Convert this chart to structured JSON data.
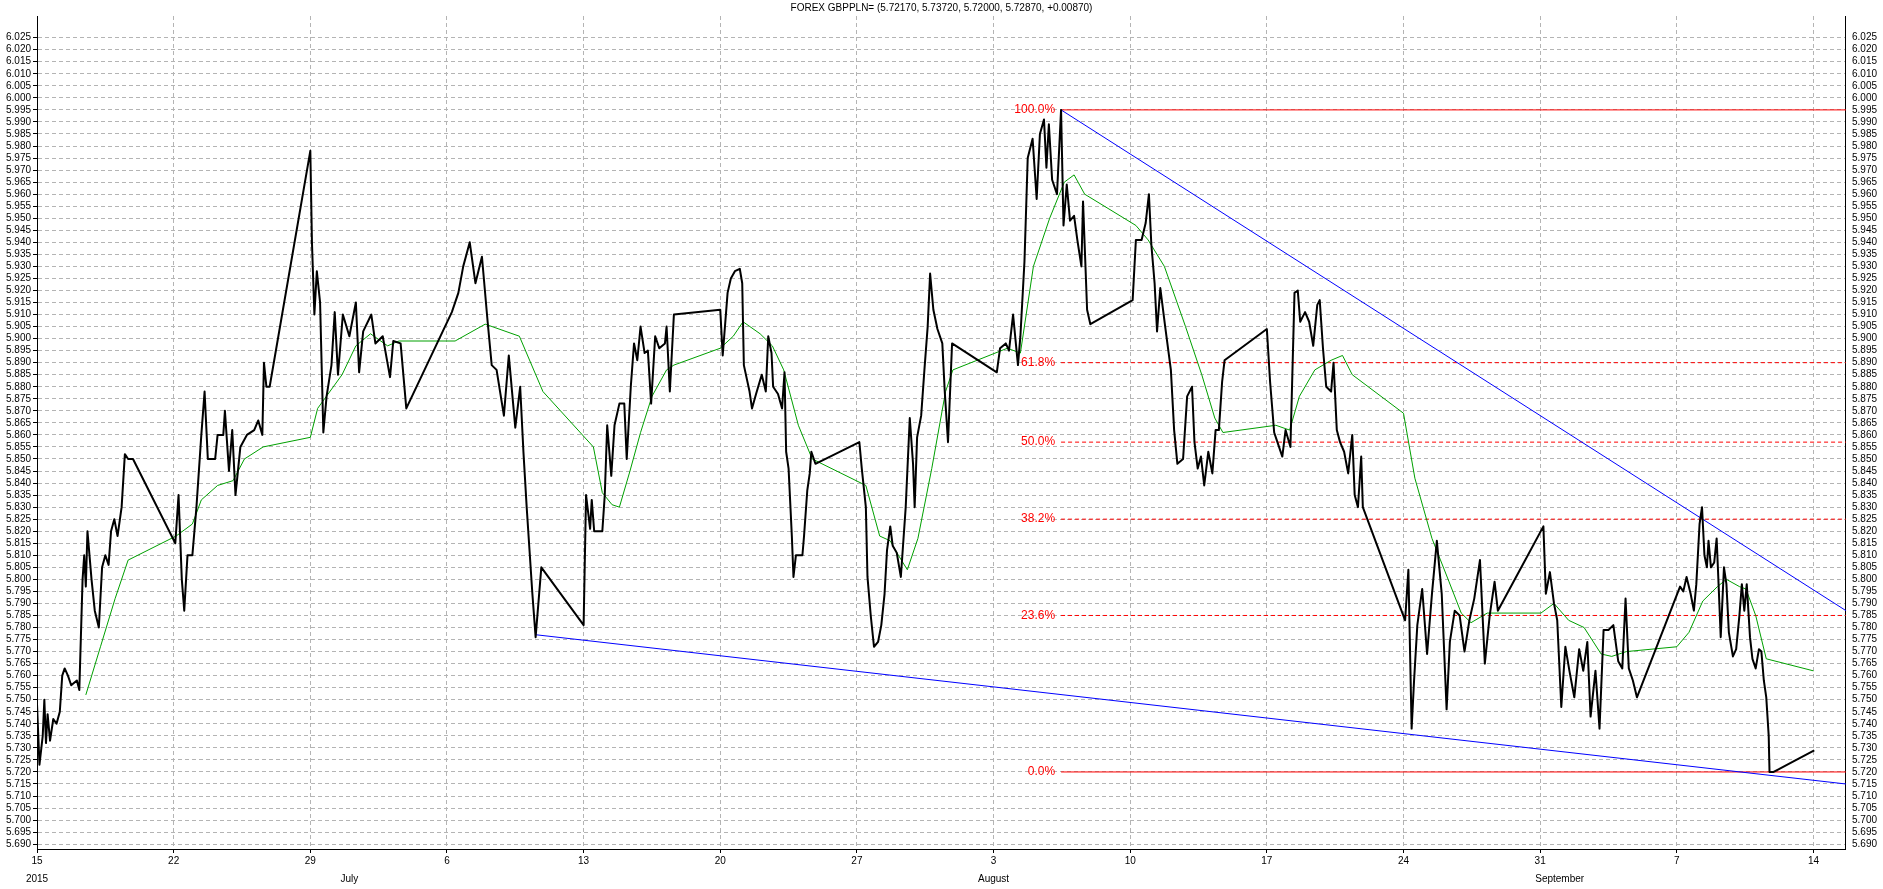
{
  "chart_data": {
    "type": "line",
    "title": "FOREX GBPPLN= (5.72170, 5.73720, 5.72000, 5.72870, +0.00870)",
    "xlim": [
      "2015-06-15T00:00",
      "2015-09-15T16:00"
    ],
    "xticks": [
      {
        "value": "2015-06-15",
        "label": "15"
      },
      {
        "value": "2015-06-22",
        "label": "22"
      },
      {
        "value": "2015-06-29",
        "label": "29"
      },
      {
        "value": "2015-07-06",
        "label": "6"
      },
      {
        "value": "2015-07-13",
        "label": "13"
      },
      {
        "value": "2015-07-20",
        "label": "20"
      },
      {
        "value": "2015-07-27",
        "label": "27"
      },
      {
        "value": "2015-08-03",
        "label": "3"
      },
      {
        "value": "2015-08-10",
        "label": "10"
      },
      {
        "value": "2015-08-17",
        "label": "17"
      },
      {
        "value": "2015-08-24",
        "label": "24"
      },
      {
        "value": "2015-08-31",
        "label": "31"
      },
      {
        "value": "2015-09-07",
        "label": "7"
      },
      {
        "value": "2015-09-14",
        "label": "14"
      }
    ],
    "ylim": [
      5.688,
      6.034
    ],
    "yticks": [
      {
        "value": 5.69,
        "label": "5.690"
      },
      {
        "value": 5.695,
        "label": "5.695"
      },
      {
        "value": 5.7,
        "label": "5.700"
      },
      {
        "value": 5.705,
        "label": "5.705"
      },
      {
        "value": 5.71,
        "label": "5.710"
      },
      {
        "value": 5.715,
        "label": "5.715"
      },
      {
        "value": 5.72,
        "label": "5.720"
      },
      {
        "value": 5.725,
        "label": "5.725"
      },
      {
        "value": 5.73,
        "label": "5.730"
      },
      {
        "value": 5.735,
        "label": "5.735"
      },
      {
        "value": 5.74,
        "label": "5.740"
      },
      {
        "value": 5.745,
        "label": "5.745"
      },
      {
        "value": 5.75,
        "label": "5.750"
      },
      {
        "value": 5.755,
        "label": "5.755"
      },
      {
        "value": 5.76,
        "label": "5.760"
      },
      {
        "value": 5.765,
        "label": "5.765"
      },
      {
        "value": 5.77,
        "label": "5.770"
      },
      {
        "value": 5.775,
        "label": "5.775"
      },
      {
        "value": 5.78,
        "label": "5.780"
      },
      {
        "value": 5.785,
        "label": "5.785"
      },
      {
        "value": 5.79,
        "label": "5.790"
      },
      {
        "value": 5.795,
        "label": "5.795"
      },
      {
        "value": 5.8,
        "label": "5.800"
      },
      {
        "value": 5.805,
        "label": "5.805"
      },
      {
        "value": 5.81,
        "label": "5.810"
      },
      {
        "value": 5.815,
        "label": "5.815"
      },
      {
        "value": 5.82,
        "label": "5.820"
      },
      {
        "value": 5.825,
        "label": "5.825"
      },
      {
        "value": 5.83,
        "label": "5.830"
      },
      {
        "value": 5.835,
        "label": "5.835"
      },
      {
        "value": 5.84,
        "label": "5.840"
      },
      {
        "value": 5.845,
        "label": "5.845"
      },
      {
        "value": 5.85,
        "label": "5.850"
      },
      {
        "value": 5.855,
        "label": "5.855"
      },
      {
        "value": 5.86,
        "label": "5.860"
      },
      {
        "value": 5.865,
        "label": "5.865"
      },
      {
        "value": 5.87,
        "label": "5.870"
      },
      {
        "value": 5.875,
        "label": "5.875"
      },
      {
        "value": 5.88,
        "label": "5.880"
      },
      {
        "value": 5.885,
        "label": "5.885"
      },
      {
        "value": 5.89,
        "label": "5.890"
      },
      {
        "value": 5.895,
        "label": "5.895"
      },
      {
        "value": 5.9,
        "label": "5.900"
      },
      {
        "value": 5.905,
        "label": "5.905"
      },
      {
        "value": 5.91,
        "label": "5.910"
      },
      {
        "value": 5.915,
        "label": "5.915"
      },
      {
        "value": 5.92,
        "label": "5.920"
      },
      {
        "value": 5.925,
        "label": "5.925"
      },
      {
        "value": 5.93,
        "label": "5.930"
      },
      {
        "value": 5.935,
        "label": "5.935"
      },
      {
        "value": 5.94,
        "label": "5.940"
      },
      {
        "value": 5.945,
        "label": "5.945"
      },
      {
        "value": 5.95,
        "label": "5.950"
      },
      {
        "value": 5.955,
        "label": "5.955"
      },
      {
        "value": 5.96,
        "label": "5.960"
      },
      {
        "value": 5.965,
        "label": "5.965"
      },
      {
        "value": 5.97,
        "label": "5.970"
      },
      {
        "value": 5.975,
        "label": "5.975"
      },
      {
        "value": 5.98,
        "label": "5.980"
      },
      {
        "value": 5.985,
        "label": "5.985"
      },
      {
        "value": 5.99,
        "label": "5.990"
      },
      {
        "value": 5.995,
        "label": "5.995"
      },
      {
        "value": 6.0,
        "label": "6.000"
      },
      {
        "value": 6.005,
        "label": "6.005"
      },
      {
        "value": 6.01,
        "label": "6.010"
      },
      {
        "value": 6.015,
        "label": "6.015"
      },
      {
        "value": 6.02,
        "label": "6.020"
      },
      {
        "value": 6.025,
        "label": "6.025"
      }
    ],
    "y2lim": [
      5.688,
      6.034
    ],
    "y2ticks": [
      {
        "value": 5.69,
        "label": "5.690"
      },
      {
        "value": 5.695,
        "label": "5.695"
      },
      {
        "value": 5.7,
        "label": "5.700"
      },
      {
        "value": 5.705,
        "label": "5.705"
      },
      {
        "value": 5.71,
        "label": "5.710"
      },
      {
        "value": 5.715,
        "label": "5.715"
      },
      {
        "value": 5.72,
        "label": "5.720"
      },
      {
        "value": 5.725,
        "label": "5.725"
      },
      {
        "value": 5.73,
        "label": "5.730"
      },
      {
        "value": 5.735,
        "label": "5.735"
      },
      {
        "value": 5.74,
        "label": "5.740"
      },
      {
        "value": 5.745,
        "label": "5.745"
      },
      {
        "value": 5.75,
        "label": "5.750"
      },
      {
        "value": 5.755,
        "label": "5.755"
      },
      {
        "value": 5.76,
        "label": "5.760"
      },
      {
        "value": 5.765,
        "label": "5.765"
      },
      {
        "value": 5.77,
        "label": "5.770"
      },
      {
        "value": 5.775,
        "label": "5.775"
      },
      {
        "value": 5.78,
        "label": "5.780"
      },
      {
        "value": 5.785,
        "label": "5.785"
      },
      {
        "value": 5.79,
        "label": "5.790"
      },
      {
        "value": 5.795,
        "label": "5.795"
      },
      {
        "value": 5.8,
        "label": "5.800"
      },
      {
        "value": 5.805,
        "label": "5.805"
      },
      {
        "value": 5.81,
        "label": "5.810"
      },
      {
        "value": 5.815,
        "label": "5.815"
      },
      {
        "value": 5.82,
        "label": "5.820"
      },
      {
        "value": 5.825,
        "label": "5.825"
      },
      {
        "value": 5.83,
        "label": "5.830"
      },
      {
        "value": 5.835,
        "label": "5.835"
      },
      {
        "value": 5.84,
        "label": "5.840"
      },
      {
        "value": 5.845,
        "label": "5.845"
      },
      {
        "value": 5.85,
        "label": "5.850"
      },
      {
        "value": 5.855,
        "label": "5.855"
      },
      {
        "value": 5.86,
        "label": "5.860"
      },
      {
        "value": 5.865,
        "label": "5.865"
      },
      {
        "value": 5.87,
        "label": "5.870"
      },
      {
        "value": 5.875,
        "label": "5.875"
      },
      {
        "value": 5.88,
        "label": "5.880"
      },
      {
        "value": 5.885,
        "label": "5.885"
      },
      {
        "value": 5.89,
        "label": "5.890"
      },
      {
        "value": 5.895,
        "label": "5.895"
      },
      {
        "value": 5.9,
        "label": "5.900"
      },
      {
        "value": 5.905,
        "label": "5.905"
      },
      {
        "value": 5.91,
        "label": "5.910"
      },
      {
        "value": 5.915,
        "label": "5.915"
      },
      {
        "value": 5.92,
        "label": "5.920"
      },
      {
        "value": 5.925,
        "label": "5.925"
      },
      {
        "value": 5.93,
        "label": "5.930"
      },
      {
        "value": 5.935,
        "label": "5.935"
      },
      {
        "value": 5.94,
        "label": "5.940"
      },
      {
        "value": 5.945,
        "label": "5.945"
      },
      {
        "value": 5.95,
        "label": "5.950"
      },
      {
        "value": 5.955,
        "label": "5.955"
      },
      {
        "value": 5.96,
        "label": "5.960"
      },
      {
        "value": 5.965,
        "label": "5.965"
      },
      {
        "value": 5.97,
        "label": "5.970"
      },
      {
        "value": 5.975,
        "label": "5.975"
      },
      {
        "value": 5.98,
        "label": "5.980"
      },
      {
        "value": 5.985,
        "label": "5.985"
      },
      {
        "value": 5.99,
        "label": "5.990"
      },
      {
        "value": 5.995,
        "label": "5.995"
      },
      {
        "value": 6.0,
        "label": "6.000"
      },
      {
        "value": 6.005,
        "label": "6.005"
      },
      {
        "value": 6.01,
        "label": "6.010"
      },
      {
        "value": 6.015,
        "label": "6.015"
      },
      {
        "value": 6.02,
        "label": "6.020"
      },
      {
        "value": 6.025,
        "label": "6.025"
      }
    ],
    "grid": true,
    "series": [
      {
        "color": "#000000",
        "x": [
          "2015-06-15T00:00",
          "2015-06-15T03:00",
          "2015-06-15T07:00",
          "2015-06-15T09:00",
          "2015-06-15T11:00",
          "2015-06-15T13:00",
          "2015-06-15T16:00",
          "2015-06-15T20:00",
          "2015-06-16T00:00",
          "2015-06-16T04:00",
          "2015-06-16T07:00",
          "2015-06-16T10:00",
          "2015-06-16T14:00",
          "2015-06-16T18:00",
          "2015-06-17T01:00",
          "2015-06-17T04:00",
          "2015-06-17T08:00",
          "2015-06-17T10:00",
          "2015-06-17T12:00",
          "2015-06-17T14:00",
          "2015-06-17T19:00",
          "2015-06-17T23:00",
          "2015-06-18T04:00",
          "2015-06-18T08:00",
          "2015-06-18T12:00",
          "2015-06-18T16:00",
          "2015-06-18T19:00",
          "2015-06-18T23:00",
          "2015-06-19T03:00",
          "2015-06-19T08:00",
          "2015-06-19T12:00",
          "2015-06-19T16:00",
          "2015-06-19T22:00",
          "2015-06-22T02:00",
          "2015-06-22T06:00",
          "2015-06-22T10:00",
          "2015-06-22T13:00",
          "2015-06-22T17:00",
          "2015-06-22T23:00",
          "2015-06-23T04:00",
          "2015-06-23T10:00",
          "2015-06-23T14:00",
          "2015-06-23T18:00",
          "2015-06-24T03:00",
          "2015-06-24T06:00",
          "2015-06-24T13:00",
          "2015-06-24T15:00",
          "2015-06-24T20:00",
          "2015-06-25T00:00",
          "2015-06-25T04:00",
          "2015-06-25T10:00",
          "2015-06-25T18:00",
          "2015-06-26T03:00",
          "2015-06-26T08:00",
          "2015-06-26T13:00",
          "2015-06-26T15:00",
          "2015-06-26T18:00",
          "2015-06-26T22:00",
          "2015-06-29T00:00",
          "2015-06-29T02:00",
          "2015-06-29T05:00",
          "2015-06-29T08:00",
          "2015-06-29T12:00",
          "2015-06-29T16:00",
          "2015-06-29T20:00",
          "2015-06-30T02:00",
          "2015-06-30T06:00",
          "2015-06-30T10:00",
          "2015-06-30T16:00",
          "2015-07-01T00:00",
          "2015-07-01T08:00",
          "2015-07-01T12:00",
          "2015-07-01T17:00",
          "2015-07-02T03:00",
          "2015-07-02T08:00",
          "2015-07-02T17:00",
          "2015-07-03T02:00",
          "2015-07-03T06:00",
          "2015-07-03T15:00",
          "2015-07-03T22:00",
          "2015-07-06T06:00",
          "2015-07-06T14:00",
          "2015-07-06T20:00",
          "2015-07-07T04:00",
          "2015-07-07T11:00",
          "2015-07-07T19:00",
          "2015-07-08T02:00",
          "2015-07-08T07:00",
          "2015-07-08T13:00",
          "2015-07-08T22:00",
          "2015-07-09T04:00",
          "2015-07-09T12:00",
          "2015-07-09T18:00",
          "2015-07-09T22:00",
          "2015-07-10T02:00",
          "2015-07-10T09:00",
          "2015-07-10T13:00",
          "2015-07-10T20:00",
          "2015-07-13T00:00",
          "2015-07-13T03:00",
          "2015-07-13T08:00",
          "2015-07-13T10:00",
          "2015-07-13T13:00",
          "2015-07-13T23:00",
          "2015-07-14T02:00",
          "2015-07-14T05:00",
          "2015-07-14T10:00",
          "2015-07-14T14:00",
          "2015-07-14T20:00",
          "2015-07-15T02:00",
          "2015-07-15T05:00",
          "2015-07-15T10:00",
          "2015-07-15T14:00",
          "2015-07-15T18:00",
          "2015-07-15T22:00",
          "2015-07-16T03:00",
          "2015-07-16T07:00",
          "2015-07-16T11:00",
          "2015-07-16T16:00",
          "2015-07-16T21:00",
          "2015-07-17T04:00",
          "2015-07-17T06:00",
          "2015-07-17T10:00",
          "2015-07-17T15:00",
          "2015-07-20T00:00",
          "2015-07-20T03:00",
          "2015-07-20T09:00",
          "2015-07-20T13:00",
          "2015-07-20T18:00",
          "2015-07-21T00:00",
          "2015-07-21T03:00",
          "2015-07-21T05:00",
          "2015-07-21T12:00",
          "2015-07-21T15:00",
          "2015-07-21T20:00",
          "2015-07-22T03:00",
          "2015-07-22T08:00",
          "2015-07-22T11:00",
          "2015-07-22T15:00",
          "2015-07-22T17:00",
          "2015-07-22T23:00",
          "2015-07-23T04:00",
          "2015-07-23T07:00",
          "2015-07-23T09:00",
          "2015-07-23T12:00",
          "2015-07-23T16:00",
          "2015-07-23T18:00",
          "2015-07-23T21:00",
          "2015-07-24T05:00",
          "2015-07-24T07:00",
          "2015-07-24T11:00",
          "2015-07-24T14:00",
          "2015-07-24T16:00",
          "2015-07-24T21:00",
          "2015-07-27T03:00",
          "2015-07-27T06:00",
          "2015-07-27T11:00",
          "2015-07-27T13:00",
          "2015-07-27T17:00",
          "2015-07-27T21:00",
          "2015-07-28T02:00",
          "2015-07-28T06:00",
          "2015-07-28T10:00",
          "2015-07-28T13:00",
          "2015-07-28T17:00",
          "2015-07-28T20:00",
          "2015-07-29T01:00",
          "2015-07-29T06:00",
          "2015-07-29T12:00",
          "2015-07-29T17:00",
          "2015-07-29T21:00",
          "2015-07-29T23:00",
          "2015-07-30T02:00",
          "2015-07-30T07:00",
          "2015-07-30T11:00",
          "2015-07-30T15:00",
          "2015-07-30T18:00",
          "2015-07-30T22:00",
          "2015-07-31T03:00",
          "2015-07-31T09:00",
          "2015-07-31T12:00",
          "2015-07-31T16:00",
          "2015-07-31T21:00",
          "2015-08-03T04:00",
          "2015-08-03T08:00",
          "2015-08-03T15:00",
          "2015-08-03T19:00",
          "2015-08-04T00:00",
          "2015-08-04T06:00",
          "2015-08-04T09:00",
          "2015-08-04T14:00",
          "2015-08-04T18:00",
          "2015-08-05T00:00",
          "2015-08-05T05:00",
          "2015-08-05T09:00",
          "2015-08-05T14:00",
          "2015-08-05T17:00",
          "2015-08-05T20:00",
          "2015-08-06T00:00",
          "2015-08-06T06:00",
          "2015-08-06T11:00",
          "2015-08-06T14:00",
          "2015-08-06T18:00",
          "2015-08-06T22:00",
          "2015-08-07T03:00",
          "2015-08-07T07:00",
          "2015-08-07T12:00",
          "2015-08-07T14:00",
          "2015-08-07T19:00",
          "2015-08-07T23:00",
          "2015-08-10T03:00",
          "2015-08-10T07:00",
          "2015-08-10T14:00",
          "2015-08-10T19:00",
          "2015-08-10T23:00",
          "2015-08-11T02:00",
          "2015-08-11T06:00",
          "2015-08-11T09:00",
          "2015-08-11T13:00",
          "2015-08-11T19:00",
          "2015-08-12T02:00",
          "2015-08-12T06:00",
          "2015-08-12T10:00",
          "2015-08-12T17:00",
          "2015-08-12T22:00",
          "2015-08-13T04:00",
          "2015-08-13T07:00",
          "2015-08-13T11:00",
          "2015-08-13T15:00",
          "2015-08-13T19:00",
          "2015-08-14T00:00",
          "2015-08-14T05:00",
          "2015-08-14T09:00",
          "2015-08-14T13:00",
          "2015-08-14T17:00",
          "2015-08-14T20:00",
          "2015-08-17T00:00",
          "2015-08-17T04:00",
          "2015-08-17T09:00",
          "2015-08-17T13:00",
          "2015-08-17T19:00",
          "2015-08-17T23:00",
          "2015-08-18T05:00",
          "2015-08-18T10:00",
          "2015-08-18T14:00",
          "2015-08-18T17:00",
          "2015-08-18T23:00",
          "2015-08-19T04:00",
          "2015-08-19T09:00",
          "2015-08-19T14:00",
          "2015-08-19T17:00",
          "2015-08-19T21:00",
          "2015-08-20T01:00",
          "2015-08-20T07:00",
          "2015-08-20T10:00",
          "2015-08-20T14:00",
          "2015-08-20T18:00",
          "2015-08-20T23:00",
          "2015-08-21T04:00",
          "2015-08-21T09:00",
          "2015-08-21T12:00",
          "2015-08-21T16:00",
          "2015-08-21T20:00",
          "2015-08-21T22:00",
          "2015-08-24T02:00",
          "2015-08-24T06:00",
          "2015-08-24T10:00",
          "2015-08-24T13:00",
          "2015-08-24T17:00",
          "2015-08-24T23:00",
          "2015-08-25T05:00",
          "2015-08-25T11:00",
          "2015-08-25T17:00",
          "2015-08-25T23:00",
          "2015-08-26T05:00",
          "2015-08-26T09:00",
          "2015-08-26T15:00",
          "2015-08-26T21:00",
          "2015-08-27T03:00",
          "2015-08-27T09:00",
          "2015-08-27T15:00",
          "2015-08-27T22:00",
          "2015-08-28T04:00",
          "2015-08-28T10:00",
          "2015-08-28T16:00",
          "2015-08-28T20:00",
          "2015-08-31T04:00",
          "2015-08-31T07:00",
          "2015-08-31T12:00",
          "2015-08-31T17:00",
          "2015-08-31T21:00",
          "2015-09-01T02:00",
          "2015-09-01T07:00",
          "2015-09-01T12:00",
          "2015-09-01T18:00",
          "2015-09-02T00:00",
          "2015-09-02T05:00",
          "2015-09-02T10:00",
          "2015-09-02T14:00",
          "2015-09-02T20:00",
          "2015-09-03T01:00",
          "2015-09-03T06:00",
          "2015-09-03T12:00",
          "2015-09-03T18:00",
          "2015-09-04T00:00",
          "2015-09-04T05:00",
          "2015-09-04T09:00",
          "2015-09-04T13:00",
          "2015-09-04T18:00",
          "2015-09-04T23:00",
          "2015-09-07T04:00",
          "2015-09-07T08:00",
          "2015-09-07T12:00",
          "2015-09-07T17:00",
          "2015-09-07T21:00",
          "2015-09-08T00:00",
          "2015-09-08T04:00",
          "2015-09-08T07:00",
          "2015-09-08T10:00",
          "2015-09-08T13:00",
          "2015-09-08T15:00",
          "2015-09-08T18:00",
          "2015-09-08T22:00",
          "2015-09-09T01:00",
          "2015-09-09T03:00",
          "2015-09-09T06:00",
          "2015-09-09T10:00",
          "2015-09-09T13:00",
          "2015-09-09T16:00",
          "2015-09-09T21:00",
          "2015-09-10T01:00",
          "2015-09-10T05:00",
          "2015-09-10T08:00",
          "2015-09-10T11:00",
          "2015-09-10T14:00",
          "2015-09-10T18:00",
          "2015-09-10T21:00",
          "2015-09-11T01:00",
          "2015-09-11T05:00",
          "2015-09-11T08:00",
          "2015-09-11T11:00",
          "2015-09-11T14:00",
          "2015-09-11T17:00",
          "2015-09-11T18:00",
          "2015-09-11T23:00",
          "2015-09-14T01:00"
        ],
        "values": [
          5.748,
          5.723,
          5.735,
          5.75,
          5.732,
          5.744,
          5.733,
          5.742,
          5.74,
          5.745,
          5.76,
          5.763,
          5.76,
          5.756,
          5.758,
          5.754,
          5.8,
          5.81,
          5.797,
          5.82,
          5.8,
          5.787,
          5.78,
          5.805,
          5.81,
          5.806,
          5.82,
          5.825,
          5.818,
          5.83,
          5.852,
          5.85,
          5.85,
          5.815,
          5.835,
          5.8,
          5.787,
          5.81,
          5.81,
          5.83,
          5.86,
          5.878,
          5.85,
          5.85,
          5.86,
          5.86,
          5.87,
          5.845,
          5.862,
          5.835,
          5.855,
          5.86,
          5.862,
          5.866,
          5.86,
          5.89,
          5.88,
          5.88,
          5.978,
          5.94,
          5.91,
          5.928,
          5.915,
          5.861,
          5.876,
          5.889,
          5.911,
          5.885,
          5.91,
          5.901,
          5.915,
          5.886,
          5.903,
          5.91,
          5.898,
          5.901,
          5.884,
          5.899,
          5.898,
          5.871,
          5.911,
          5.919,
          5.93,
          5.94,
          5.923,
          5.934,
          5.907,
          5.889,
          5.887,
          5.868,
          5.893,
          5.863,
          5.88,
          5.853,
          5.83,
          5.794,
          5.776,
          5.805,
          5.781,
          5.835,
          5.821,
          5.833,
          5.82,
          5.82,
          5.835,
          5.864,
          5.843,
          5.864,
          5.873,
          5.873,
          5.85,
          5.88,
          5.898,
          5.891,
          5.905,
          5.894,
          5.895,
          5.873,
          5.901,
          5.896,
          5.898,
          5.905,
          5.878,
          5.91,
          5.912,
          5.893,
          5.919,
          5.925,
          5.928,
          5.929,
          5.923,
          5.889,
          5.878,
          5.871,
          5.877,
          5.885,
          5.878,
          5.901,
          5.894,
          5.88,
          5.877,
          5.871,
          5.886,
          5.853,
          5.846,
          5.818,
          5.801,
          5.81,
          5.81,
          5.818,
          5.837,
          5.844,
          5.853,
          5.848,
          5.857,
          5.846,
          5.83,
          5.801,
          5.785,
          5.772,
          5.774,
          5.781,
          5.794,
          5.812,
          5.822,
          5.814,
          5.811,
          5.801,
          5.83,
          5.867,
          5.848,
          5.83,
          5.859,
          5.868,
          5.887,
          5.905,
          5.927,
          5.912,
          5.904,
          5.898,
          5.878,
          5.857,
          5.898,
          5.886,
          5.896,
          5.898,
          5.895,
          5.91,
          5.889,
          5.901,
          5.932,
          5.975,
          5.983,
          5.958,
          5.985,
          5.991,
          5.971,
          5.989,
          5.966,
          5.96,
          5.995,
          5.947,
          5.964,
          5.949,
          5.951,
          5.941,
          5.93,
          5.957,
          5.912,
          5.906,
          5.916,
          5.941,
          5.941,
          5.948,
          5.96,
          5.939,
          5.923,
          5.903,
          5.921,
          5.905,
          5.887,
          5.862,
          5.848,
          5.85,
          5.876,
          5.88,
          5.857,
          5.846,
          5.851,
          5.839,
          5.853,
          5.844,
          5.862,
          5.862,
          5.882,
          5.891,
          5.904,
          5.882,
          5.861,
          5.857,
          5.851,
          5.862,
          5.855,
          5.919,
          5.92,
          5.907,
          5.911,
          5.907,
          5.897,
          5.914,
          5.916,
          5.896,
          5.88,
          5.878,
          5.89,
          5.862,
          5.857,
          5.853,
          5.844,
          5.86,
          5.835,
          5.83,
          5.851,
          5.83,
          5.783,
          5.804,
          5.738,
          5.758,
          5.781,
          5.796,
          5.769,
          5.794,
          5.816,
          5.794,
          5.746,
          5.774,
          5.787,
          5.785,
          5.77,
          5.783,
          5.792,
          5.808,
          5.765,
          5.785,
          5.799,
          5.787,
          5.822,
          5.794,
          5.803,
          5.79,
          5.783,
          5.747,
          5.772,
          5.762,
          5.751,
          5.771,
          5.762,
          5.774,
          5.743,
          5.762,
          5.738,
          5.779,
          5.779,
          5.781,
          5.766,
          5.763,
          5.792,
          5.763,
          5.758,
          5.751,
          5.797,
          5.795,
          5.801,
          5.794,
          5.787,
          5.798,
          5.823,
          5.83,
          5.81,
          5.805,
          5.816,
          5.805,
          5.807,
          5.817,
          5.801,
          5.776,
          5.805,
          5.798,
          5.778,
          5.768,
          5.771,
          5.785,
          5.798,
          5.787,
          5.798,
          5.776,
          5.767,
          5.763,
          5.771,
          5.77,
          5.758,
          5.751,
          5.735,
          5.72,
          5.72,
          5.729
        ]
      },
      {
        "color": "#00a000",
        "x": [
          "2015-06-17T12:00",
          "2015-06-18T06:00",
          "2015-06-19T00:00",
          "2015-06-19T16:00",
          "2015-06-22T03:00",
          "2015-06-22T23:00",
          "2015-06-23T10:00",
          "2015-06-24T06:00",
          "2015-06-25T01:00",
          "2015-06-25T15:00",
          "2015-06-26T14:00",
          "2015-06-29T00:00",
          "2015-06-29T09:00",
          "2015-06-30T15:00",
          "2015-07-01T08:00",
          "2015-07-02T02:00",
          "2015-07-02T23:00",
          "2015-07-03T13:00",
          "2015-07-06T10:00",
          "2015-07-07T23:00",
          "2015-07-09T17:00",
          "2015-07-10T22:00",
          "2015-07-13T12:00",
          "2015-07-13T23:00",
          "2015-07-14T11:00",
          "2015-07-14T20:00",
          "2015-07-15T09:00",
          "2015-07-15T22:00",
          "2015-07-16T12:00",
          "2015-07-17T06:00",
          "2015-07-17T15:00",
          "2015-07-20T00:00",
          "2015-07-20T16:00",
          "2015-07-21T04:00",
          "2015-07-22T01:00",
          "2015-07-22T16:00",
          "2015-07-23T06:00",
          "2015-07-24T00:00",
          "2015-07-24T17:00",
          "2015-07-27T11:00",
          "2015-07-28T04:00",
          "2015-07-28T17:00",
          "2015-07-29T03:00",
          "2015-07-29T14:00",
          "2015-07-30T03:00",
          "2015-07-30T20:00",
          "2015-07-31T13:00",
          "2015-07-31T22:00",
          "2015-08-03T17:00",
          "2015-08-04T09:00",
          "2015-08-05T01:00",
          "2015-08-05T21:00",
          "2015-08-06T15:00",
          "2015-08-07T03:00",
          "2015-08-07T16:00",
          "2015-08-10T07:00",
          "2015-08-10T22:00",
          "2015-08-11T18:00",
          "2015-08-12T20:00",
          "2015-08-13T16:00",
          "2015-08-14T08:00",
          "2015-08-14T18:00",
          "2015-08-17T11:00",
          "2015-08-18T04:00",
          "2015-08-18T16:00",
          "2015-08-19T11:00",
          "2015-08-20T07:00",
          "2015-08-20T21:00",
          "2015-08-21T09:00",
          "2015-08-24T00:00",
          "2015-08-24T14:00",
          "2015-08-25T11:00",
          "2015-08-26T08:00",
          "2015-08-26T23:00",
          "2015-08-27T11:00",
          "2015-08-28T07:00",
          "2015-08-31T01:00",
          "2015-08-31T17:00",
          "2015-09-01T11:00",
          "2015-09-02T06:00",
          "2015-09-03T03:00",
          "2015-09-03T16:00",
          "2015-09-04T10:00",
          "2015-09-07T00:00",
          "2015-09-07T15:00",
          "2015-09-08T08:00",
          "2015-09-09T02:00",
          "2015-09-09T13:00",
          "2015-09-10T05:00",
          "2015-09-10T13:00",
          "2015-09-11T01:00",
          "2015-09-11T14:00",
          "2015-09-14T00:00"
        ],
        "values": [
          5.752,
          5.772,
          5.792,
          5.808,
          5.818,
          5.823,
          5.833,
          5.839,
          5.841,
          5.85,
          5.855,
          5.859,
          5.871,
          5.885,
          5.897,
          5.902,
          5.897,
          5.899,
          5.899,
          5.906,
          5.901,
          5.878,
          5.855,
          5.836,
          5.831,
          5.83,
          5.845,
          5.861,
          5.876,
          5.887,
          5.889,
          5.896,
          5.901,
          5.907,
          5.902,
          5.897,
          5.887,
          5.864,
          5.85,
          5.839,
          5.818,
          5.816,
          5.81,
          5.804,
          5.817,
          5.846,
          5.878,
          5.887,
          5.896,
          5.894,
          5.93,
          5.95,
          5.965,
          5.968,
          5.96,
          5.947,
          5.941,
          5.93,
          5.905,
          5.885,
          5.867,
          5.861,
          5.864,
          5.862,
          5.876,
          5.887,
          5.891,
          5.893,
          5.885,
          5.869,
          5.842,
          5.817,
          5.799,
          5.786,
          5.782,
          5.786,
          5.786,
          5.79,
          5.783,
          5.78,
          5.769,
          5.768,
          5.77,
          5.772,
          5.778,
          5.791,
          5.797,
          5.8,
          5.797,
          5.796,
          5.785,
          5.767,
          5.762
        ]
      },
      {
        "color": "#0000ff",
        "x": [
          "2015-08-06T11:00",
          "2015-09-15T16:00"
        ],
        "values": [
          5.995,
          5.787
        ]
      },
      {
        "color": "#0000ff",
        "x": [
          "2015-07-10T13:00",
          "2015-09-15T16:00"
        ],
        "values": [
          5.777,
          5.715
        ]
      },
      {
        "name": "100.0%",
        "color": "#ff0000",
        "line_style": "solid",
        "x": [
          "2015-08-06T11:00",
          "2015-09-15T16:00"
        ],
        "values": [
          5.995,
          5.995
        ]
      },
      {
        "name": "61.8%",
        "color": "#ff0000",
        "line_style": "dashed",
        "x": [
          "2015-08-06T11:00",
          "2015-09-15T16:00"
        ],
        "values": [
          5.89,
          5.89
        ]
      },
      {
        "name": "50.0%",
        "color": "#ff0000",
        "line_style": "dashed",
        "x": [
          "2015-08-06T11:00",
          "2015-09-15T16:00"
        ],
        "values": [
          5.857,
          5.857
        ]
      },
      {
        "name": "38.2%",
        "color": "#ff0000",
        "line_style": "dashed",
        "x": [
          "2015-08-06T11:00",
          "2015-09-15T16:00"
        ],
        "values": [
          5.825,
          5.825
        ]
      },
      {
        "name": "23.6%",
        "color": "#ff0000",
        "line_style": "dashed",
        "x": [
          "2015-08-06T11:00",
          "2015-09-15T16:00"
        ],
        "values": [
          5.785,
          5.785
        ]
      },
      {
        "name": "0.0%",
        "color": "#ff0000",
        "line_style": "solid",
        "x": [
          "2015-08-06T11:00",
          "2015-09-15T16:00"
        ],
        "values": [
          5.72,
          5.72
        ]
      }
    ],
    "x2lim": [
      "2015-06-15T00:00",
      "2015-09-15T16:00"
    ],
    "x2ticks": [
      {
        "value": "2015-06-15",
        "label": "2015"
      },
      {
        "value": "2015-07-01",
        "label": "July"
      },
      {
        "value": "2015-08-03",
        "label": "August"
      },
      {
        "value": "2015-09-01",
        "label": "September"
      }
    ]
  }
}
